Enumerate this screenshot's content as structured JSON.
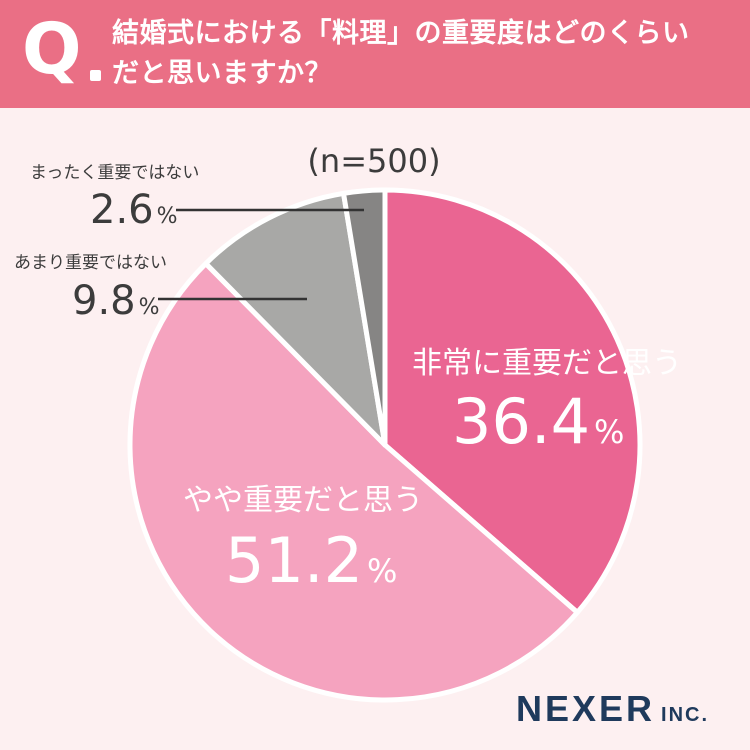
{
  "header": {
    "q_mark": "Q",
    "question_line1": "結婚式における「料理」の重要度はどのくらい",
    "question_line2": "だと思いますか？"
  },
  "colors": {
    "header_bg": "#ea6f85",
    "page_bg": "#fdf0f1",
    "very_important": "#ea6592",
    "somewhat_important": "#f5a3bf",
    "not_very_important": "#a8a8a6",
    "not_important": "#868584",
    "dark_text": "#3c3c3c",
    "brand": "#1f3a5c"
  },
  "chart_data": {
    "type": "pie",
    "sample": "(n=500)",
    "unit": "%",
    "slices": [
      {
        "label": "非常に重要だと思う",
        "value": 36.4,
        "value_text": "36.4",
        "color": "#ea6592"
      },
      {
        "label": "やや重要だと思う",
        "value": 51.2,
        "value_text": "51.2",
        "color": "#f5a3bf"
      },
      {
        "label": "あまり重要ではない",
        "value": 9.8,
        "value_text": "9.8",
        "color": "#a8a8a6"
      },
      {
        "label": "まったく重要ではない",
        "value": 2.6,
        "value_text": "2.6",
        "color": "#868584"
      }
    ]
  },
  "brand": {
    "name": "NEXER",
    "suffix": "INC."
  }
}
